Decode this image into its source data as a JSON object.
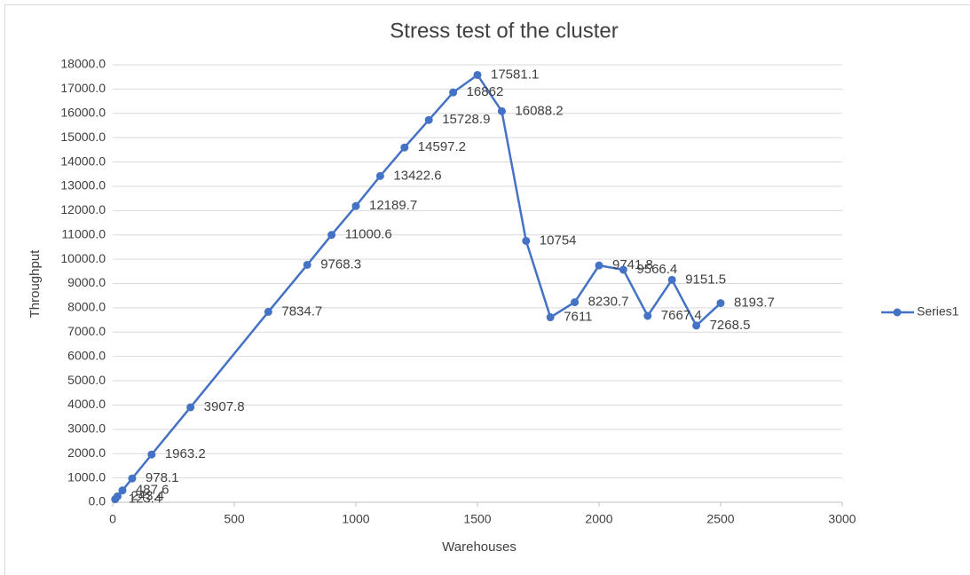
{
  "chart_data": {
    "type": "line",
    "title": "Stress test of the cluster",
    "x_label": "Warehouses",
    "y_label": "Throughput",
    "x": [
      10,
      20,
      40,
      80,
      160,
      320,
      640,
      800,
      900,
      1000,
      1100,
      1200,
      1300,
      1400,
      1500,
      1600,
      1700,
      1800,
      1900,
      2000,
      2100,
      2200,
      2300,
      2400,
      2500
    ],
    "series": [
      {
        "name": "Series1",
        "color": "#4472c4",
        "values": [
          123.4,
          243.4,
          487.6,
          978.1,
          1963.2,
          3907.8,
          7834.7,
          9768.3,
          11000.6,
          12189.7,
          13422.6,
          14597.2,
          15728.9,
          16862,
          17581.1,
          16088.2,
          10754,
          7611,
          8230.7,
          9741.8,
          9566.4,
          7667.4,
          9151.5,
          7268.5,
          8193.7
        ]
      }
    ],
    "xlim": [
      0,
      3000
    ],
    "xticks": [
      0,
      500,
      1000,
      1500,
      2000,
      2500,
      3000
    ],
    "ylim": [
      0,
      18000
    ],
    "yticks": [
      {
        "value": 0,
        "label": "0.0"
      },
      {
        "value": 1000,
        "label": "1000.0"
      },
      {
        "value": 2000,
        "label": "2000.0"
      },
      {
        "value": 3000,
        "label": "3000.0"
      },
      {
        "value": 4000,
        "label": "4000.0"
      },
      {
        "value": 5000,
        "label": "5000.0"
      },
      {
        "value": 6000,
        "label": "6000.0"
      },
      {
        "value": 7000,
        "label": "7000.0"
      },
      {
        "value": 8000,
        "label": "8000.0"
      },
      {
        "value": 9000,
        "label": "9000.0"
      },
      {
        "value": 10000,
        "label": "10000.0"
      },
      {
        "value": 11000,
        "label": "11000.0"
      },
      {
        "value": 12000,
        "label": "12000.0"
      },
      {
        "value": 13000,
        "label": "13000.0"
      },
      {
        "value": 14000,
        "label": "14000.0"
      },
      {
        "value": 15000,
        "label": "15000.0"
      },
      {
        "value": 16000,
        "label": "16000.0"
      },
      {
        "value": 17000,
        "label": "17000.0"
      },
      {
        "value": 18000,
        "label": "18000.0"
      }
    ],
    "grid": true,
    "legend": "right"
  }
}
